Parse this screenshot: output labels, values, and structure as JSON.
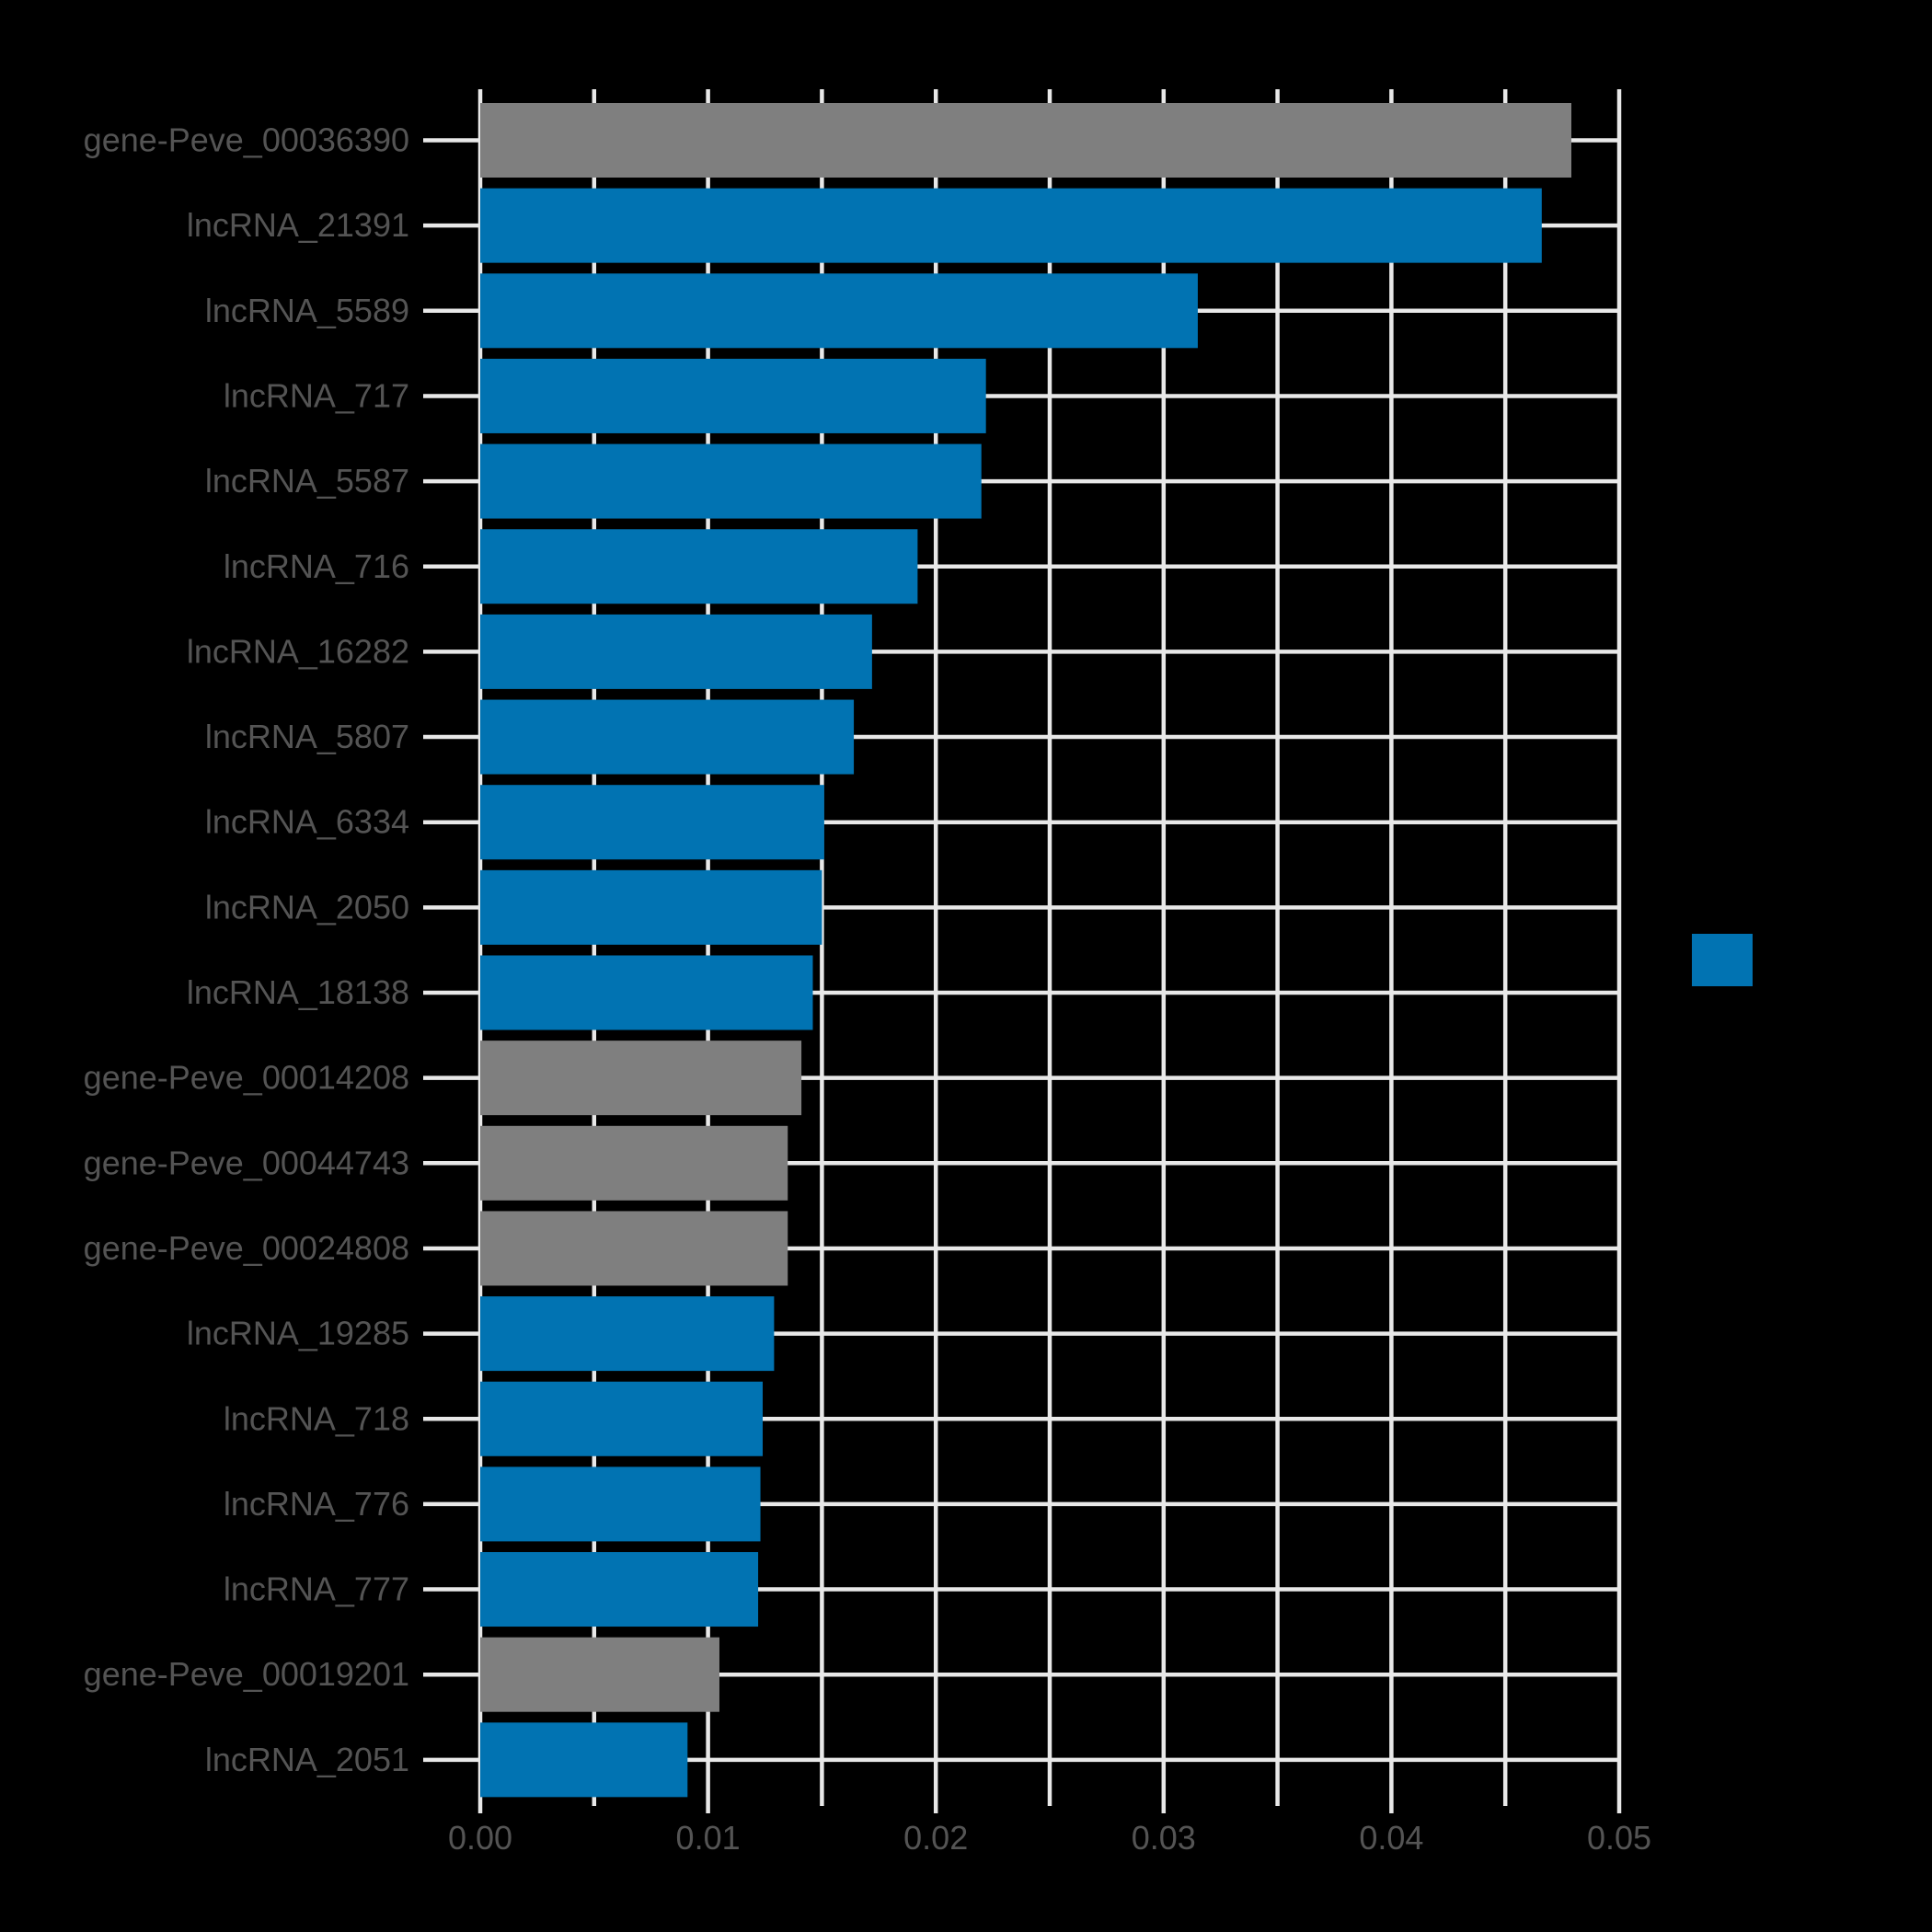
{
  "chart_data": {
    "type": "bar",
    "orientation": "horizontal",
    "title": "",
    "xlabel": "",
    "ylabel": "",
    "categories": [
      "gene-Peve_00036390",
      "lncRNA_21391",
      "lncRNA_5589",
      "lncRNA_717",
      "lncRNA_5587",
      "lncRNA_716",
      "lncRNA_16282",
      "lncRNA_5807",
      "lncRNA_6334",
      "lncRNA_2050",
      "lncRNA_18138",
      "gene-Peve_00014208",
      "gene-Peve_00044743",
      "gene-Peve_00024808",
      "lncRNA_19285",
      "lncRNA_718",
      "lncRNA_776",
      "lncRNA_777",
      "gene-Peve_00019201",
      "lncRNA_2051"
    ],
    "values": [
      0.0479,
      0.0466,
      0.0315,
      0.0222,
      0.022,
      0.0192,
      0.0172,
      0.0164,
      0.0151,
      0.015,
      0.0146,
      0.0141,
      0.0135,
      0.0135,
      0.0129,
      0.0124,
      0.0123,
      0.0122,
      0.0105,
      0.0091
    ],
    "bar_colors": [
      "gray",
      "blue",
      "blue",
      "blue",
      "blue",
      "blue",
      "blue",
      "blue",
      "blue",
      "blue",
      "blue",
      "gray",
      "gray",
      "gray",
      "blue",
      "blue",
      "blue",
      "blue",
      "gray",
      "blue"
    ],
    "palette": {
      "blue": "#0173b2",
      "gray": "#7f7f7f"
    },
    "xlim": [
      0,
      0.05
    ],
    "x_tick_labels": [
      "0.00",
      "0.01",
      "0.02",
      "0.03",
      "0.04",
      "0.05"
    ],
    "x_minor_step": 0.005,
    "grid": "major+minor vertical at 0.005 steps, horizontal at each category center",
    "legend": {
      "position": "right-middle",
      "swatch_color": "#0173b2"
    },
    "colors": {
      "background": "#000000",
      "grid": "#e8e8e8",
      "tick_text": "#545454"
    }
  }
}
